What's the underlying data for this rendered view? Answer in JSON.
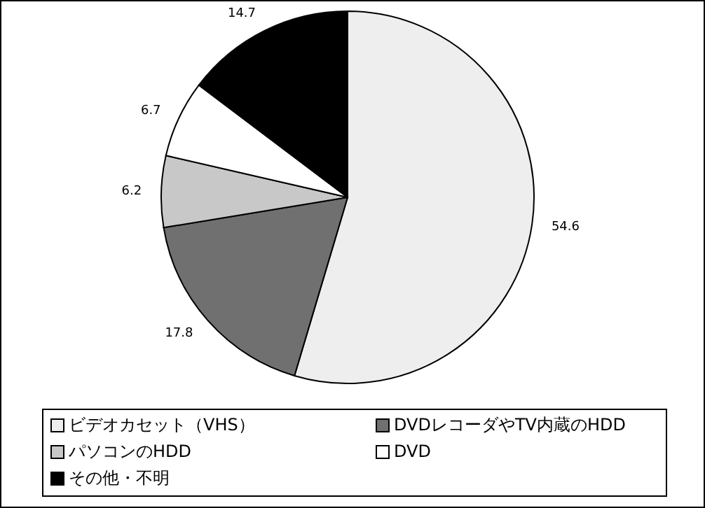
{
  "chart_data": {
    "type": "pie",
    "categories": [
      "ビデオカセット（VHS）",
      "DVDレコーダやTV内蔵のHDD",
      "パソコンのHDD",
      "DVD",
      "その他・不明"
    ],
    "values": [
      54.6,
      17.8,
      6.2,
      6.7,
      14.7
    ],
    "colors": [
      "#eeeeee",
      "#707070",
      "#c8c8c8",
      "#ffffff",
      "#000000"
    ],
    "data_labels": true,
    "legend": "bottom"
  }
}
